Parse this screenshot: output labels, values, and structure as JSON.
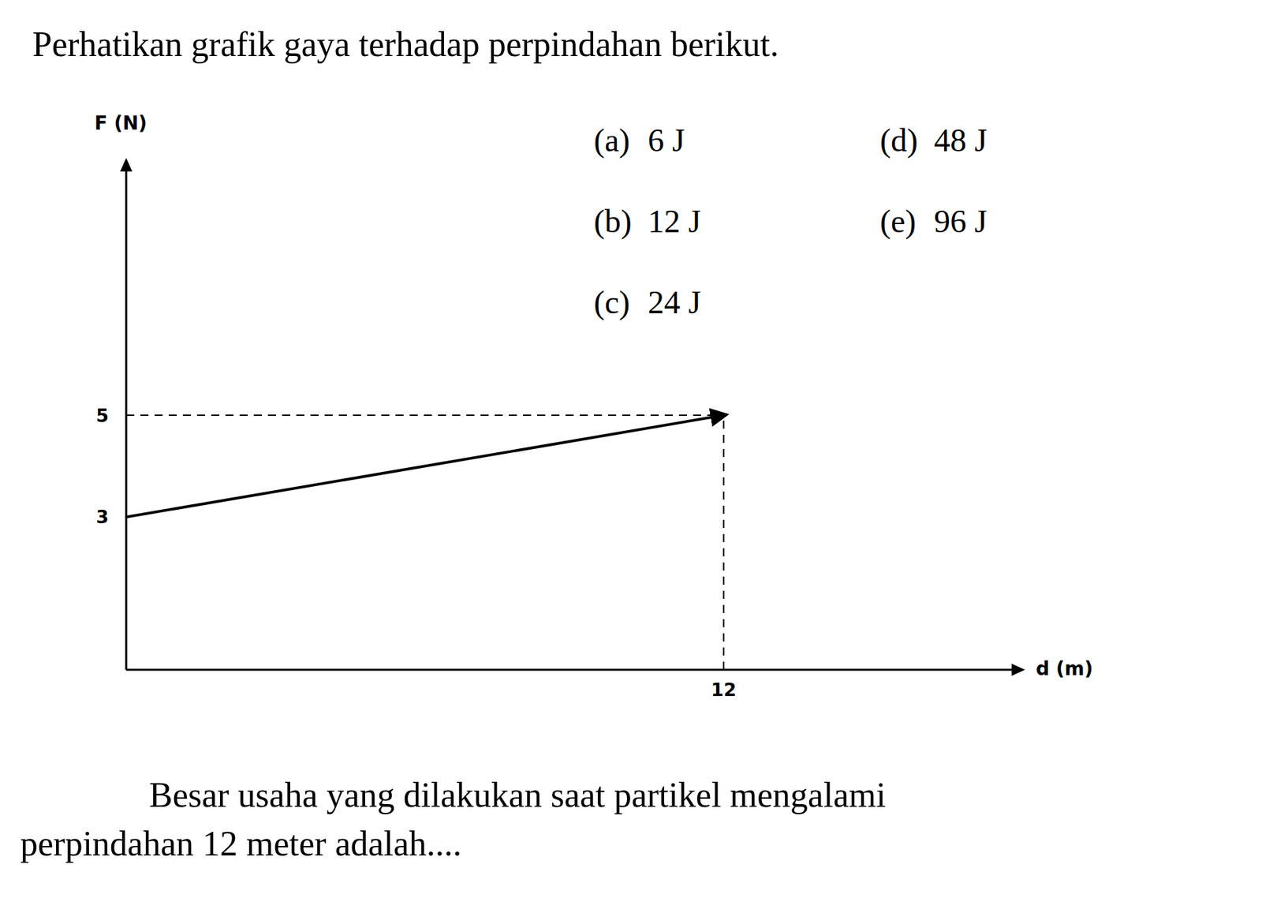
{
  "title": "Perhatikan grafik gaya terhadap perpindahan berikut.",
  "options": [
    {
      "label": "(a)",
      "text": "6 J"
    },
    {
      "label": "(b)",
      "text": "12 J"
    },
    {
      "label": "(c)",
      "text": "24 J"
    },
    {
      "label": "(d)",
      "text": "48 J"
    },
    {
      "label": "(e)",
      "text": "96 J"
    }
  ],
  "chart_data": {
    "type": "line",
    "x_label": "d (m)",
    "y_label": "F (N)",
    "x": [
      0,
      12
    ],
    "values": [
      3,
      5
    ],
    "xlim": [
      0,
      18
    ],
    "ylim": [
      0,
      10
    ],
    "xticks": [
      12
    ],
    "yticks": [
      3,
      5
    ],
    "color": "#000000",
    "marker": "arrow",
    "line_style": "solid"
  },
  "question": [
    "Besar usaha yang dilakukan saat partikel mengalami",
    "perpindahan 12 meter adalah...."
  ]
}
